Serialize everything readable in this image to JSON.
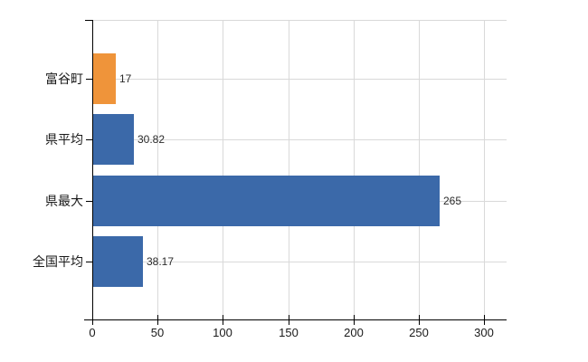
{
  "chart": {
    "title": "",
    "background_color": "#ffffff"
  },
  "chart_data": {
    "type": "bar",
    "orientation": "horizontal",
    "categories": [
      "富谷町",
      "県平均",
      "県最大",
      "全国平均"
    ],
    "values": [
      17,
      30.82,
      265,
      38.17
    ],
    "data_labels": [
      "17",
      "30.82",
      "265",
      "38.17"
    ],
    "bar_colors": [
      "#EF943A",
      "#3B69A9",
      "#3B69A9",
      "#3B69A9"
    ],
    "xlabel": "",
    "ylabel": "",
    "xlim": [
      0,
      317
    ],
    "x_ticks": [
      0,
      50,
      100,
      150,
      200,
      250,
      300
    ],
    "x_tick_labels": [
      "0",
      "50",
      "100",
      "150",
      "200",
      "250",
      "300"
    ],
    "grid": {
      "vertical": true,
      "horizontal": true
    },
    "legend": "none"
  },
  "style": {
    "bar_color_highlight": "#EF943A",
    "bar_color_default": "#3B69A9",
    "grid_color": "#D9D9D9",
    "axis_color": "#000000",
    "tick_label_color": "#1A1A1A",
    "value_label_color": "#2B2B2B"
  }
}
